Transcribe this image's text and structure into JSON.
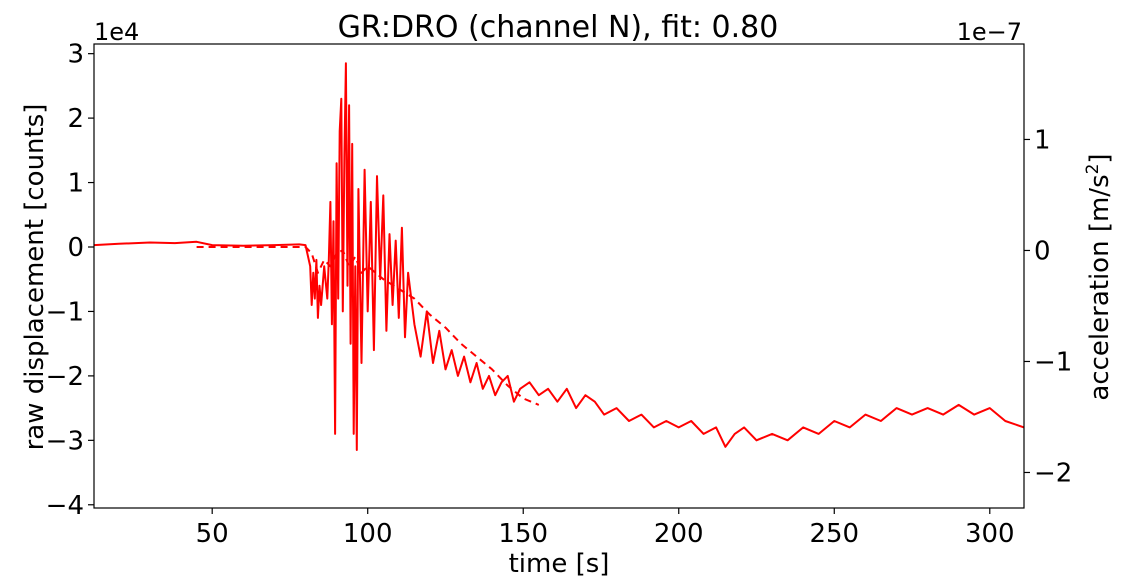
{
  "chart_data": {
    "type": "line",
    "title": "GR:DRO  (channel N), fit: 0.80",
    "xlabel": "time [s]",
    "ylabel_left": "raw displacement [counts]",
    "ylabel_right_prefix": "acceleration [m/s",
    "ylabel_right_sup": "2",
    "ylabel_right_suffix": "]",
    "xlim": [
      12,
      311
    ],
    "ylim_left": [
      -40500,
      31500
    ],
    "ylim_right": [
      -2.32e-07,
      1.86e-07
    ],
    "left_scale_label": "1e4",
    "right_scale_label": "1e−7",
    "x_ticks": [
      50,
      100,
      150,
      200,
      250,
      300
    ],
    "x_tick_labels": [
      "50",
      "100",
      "150",
      "200",
      "250",
      "300"
    ],
    "left_ticks": [
      -40000,
      -30000,
      -20000,
      -10000,
      0,
      10000,
      20000,
      30000
    ],
    "left_tick_labels": [
      "−4",
      "−3",
      "−2",
      "−1",
      "0",
      "1",
      "2",
      "3"
    ],
    "right_ticks": [
      -2e-07,
      -1e-07,
      0,
      1e-07
    ],
    "right_tick_labels": [
      "−2",
      "−1",
      "0",
      "1"
    ],
    "line_color": "#ff0000",
    "series": [
      {
        "name": "raw displacement",
        "axis": "left",
        "style": "solid",
        "x": [
          12,
          20,
          30,
          38,
          45,
          50,
          60,
          70,
          78,
          80,
          81.5,
          82,
          82.5,
          83,
          83.5,
          84,
          84.5,
          85,
          86,
          87,
          87.5,
          88,
          88.5,
          89,
          89.5,
          90,
          90.5,
          91,
          91.5,
          92,
          92.5,
          93,
          93.5,
          94,
          94.5,
          95,
          95.5,
          96,
          96.5,
          97,
          98,
          99,
          100,
          101,
          102,
          103,
          104,
          105,
          106,
          107,
          108,
          109,
          110,
          111,
          112,
          113,
          115,
          117,
          119,
          121,
          123,
          125,
          127,
          129,
          131,
          133,
          135,
          137,
          139,
          141,
          143,
          145,
          147,
          149,
          152,
          155,
          158,
          161,
          164,
          167,
          170,
          173,
          176,
          180,
          184,
          188,
          192,
          196,
          200,
          204,
          208,
          212,
          215,
          218,
          221,
          225,
          230,
          235,
          240,
          245,
          250,
          255,
          260,
          265,
          270,
          275,
          280,
          285,
          290,
          295,
          300,
          305,
          311
        ],
        "y": [
          300,
          500,
          700,
          600,
          800,
          300,
          200,
          300,
          400,
          300,
          -3000,
          -9000,
          -4000,
          -8000,
          -2000,
          -11000,
          -6000,
          -9000,
          -3000,
          -8000,
          -2000,
          7000,
          -12000,
          4000,
          -29000,
          13000,
          -8000,
          18000,
          23000,
          -10000,
          14000,
          28500,
          -6000,
          22000,
          -15000,
          16000,
          -29000,
          -3000,
          -31500,
          9000,
          -18000,
          12000,
          -10000,
          7000,
          -16000,
          11000,
          -5000,
          8000,
          -13000,
          2000,
          -9000,
          1000,
          -11000,
          3000,
          -14000,
          -4000,
          -12000,
          -17000,
          -10000,
          -18000,
          -13000,
          -19000,
          -16000,
          -20000,
          -17000,
          -21000,
          -18000,
          -22000,
          -20000,
          -23000,
          -21000,
          -20000,
          -24000,
          -22000,
          -21000,
          -23000,
          -22000,
          -24000,
          -22000,
          -25000,
          -23000,
          -24000,
          -26000,
          -25000,
          -27000,
          -26000,
          -28000,
          -27000,
          -28000,
          -27000,
          -29000,
          -28000,
          -31000,
          -29000,
          -28000,
          -30000,
          -29000,
          -30000,
          -28000,
          -29000,
          -27000,
          -28000,
          -26000,
          -27000,
          -25000,
          -26000,
          -25000,
          -26000,
          -24500,
          -26000,
          -25000,
          -27000,
          -28000
        ]
      },
      {
        "name": "acceleration fit",
        "axis": "left",
        "style": "dashed",
        "x": [
          45,
          80,
          82,
          84,
          86,
          88,
          90,
          92,
          94,
          96,
          98,
          100,
          105,
          110,
          115,
          120,
          125,
          130,
          135,
          140,
          145,
          150,
          155
        ],
        "y": [
          0,
          0,
          -1000,
          -4000,
          -2000,
          -3000,
          -1000,
          -500,
          -3000,
          -1500,
          -4000,
          -3000,
          -5000,
          -6500,
          -8000,
          -10500,
          -12500,
          -15000,
          -17000,
          -19000,
          -21500,
          -23500,
          -24500
        ]
      }
    ]
  }
}
